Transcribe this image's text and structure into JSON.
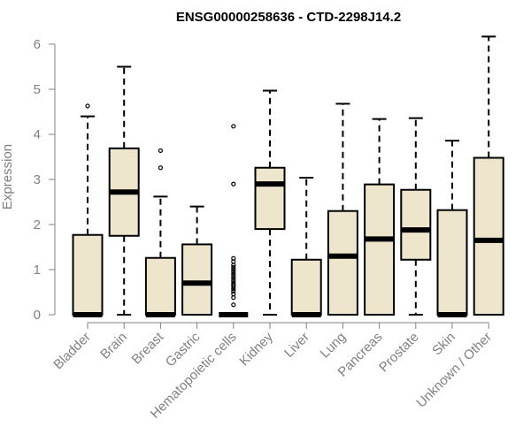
{
  "chart_data": {
    "type": "boxplot",
    "title": "ENSG00000258636 - CTD-2298J14.2",
    "xlabel": "",
    "ylabel": "Expression",
    "ylim": [
      0,
      6.2
    ],
    "yticks": [
      0,
      1,
      2,
      3,
      4,
      5,
      6
    ],
    "grid": false,
    "legend": "none",
    "box_fill": "#ede6cd",
    "box_stroke": "#000000",
    "axis_color": "#808080",
    "categories": [
      "Bladder",
      "Brain",
      "Breast",
      "Gastric",
      "Hematopoietic cells",
      "Kidney",
      "Liver",
      "Lung",
      "Pancreas",
      "Prostate",
      "Skin",
      "Unknown / Other"
    ],
    "boxes": [
      {
        "min": 0,
        "q1": 0,
        "median": 0,
        "q3": 1.77,
        "max": 4.4,
        "outliers": [
          4.63
        ]
      },
      {
        "min": 0,
        "q1": 1.75,
        "median": 2.72,
        "q3": 3.69,
        "max": 5.5,
        "outliers": []
      },
      {
        "min": 0,
        "q1": 0,
        "median": 0,
        "q3": 1.26,
        "max": 2.62,
        "outliers": [
          3.26,
          3.64
        ]
      },
      {
        "min": 0,
        "q1": 0,
        "median": 0.7,
        "q3": 1.56,
        "max": 2.4,
        "outliers": []
      },
      {
        "min": 0,
        "q1": 0,
        "median": 0,
        "q3": 0,
        "max": 0,
        "outliers": [
          0.22,
          0.38,
          0.46,
          0.52,
          0.57,
          0.62,
          0.66,
          0.7,
          0.75,
          0.8,
          0.85,
          0.9,
          0.95,
          1.0,
          1.05,
          1.1,
          1.18,
          1.25,
          2.9,
          4.18
        ]
      },
      {
        "min": 0,
        "q1": 1.9,
        "median": 2.9,
        "q3": 3.26,
        "max": 4.97,
        "outliers": []
      },
      {
        "min": 0,
        "q1": 0,
        "median": 0,
        "q3": 1.22,
        "max": 3.04,
        "outliers": []
      },
      {
        "min": 0,
        "q1": 0,
        "median": 1.3,
        "q3": 2.3,
        "max": 4.68,
        "outliers": []
      },
      {
        "min": 0,
        "q1": 0,
        "median": 1.68,
        "q3": 2.89,
        "max": 4.34,
        "outliers": []
      },
      {
        "min": 0,
        "q1": 1.22,
        "median": 1.88,
        "q3": 2.77,
        "max": 4.36,
        "outliers": []
      },
      {
        "min": 0,
        "q1": 0,
        "median": 0,
        "q3": 2.32,
        "max": 3.86,
        "outliers": []
      },
      {
        "min": 0,
        "q1": 0,
        "median": 1.65,
        "q3": 3.48,
        "max": 6.17,
        "outliers": []
      }
    ]
  }
}
